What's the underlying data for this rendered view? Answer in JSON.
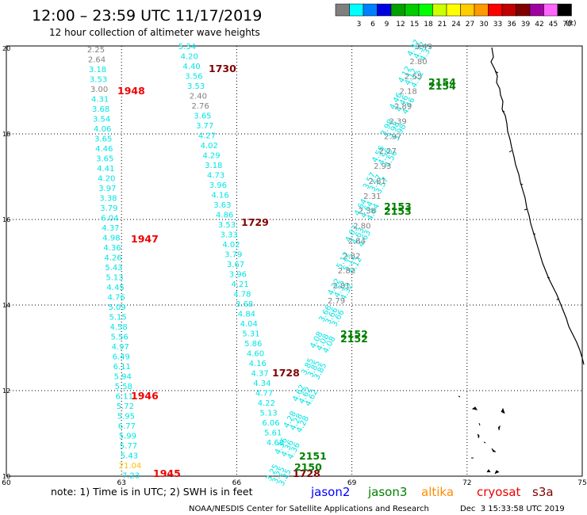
{
  "header": {
    "title": "12:00 – 23:59 UTC 11/17/2019",
    "subtitle": "12 hour collection of altimeter wave heights"
  },
  "legend": {
    "unit": "(ft)",
    "bins": [
      {
        "label": "",
        "color": "#7f7f7f"
      },
      {
        "label": "3",
        "color": "#00ffff"
      },
      {
        "label": "6",
        "color": "#0080ff"
      },
      {
        "label": "9",
        "color": "#0000e0"
      },
      {
        "label": "12",
        "color": "#00a000"
      },
      {
        "label": "15",
        "color": "#00cc00"
      },
      {
        "label": "18",
        "color": "#00ff00"
      },
      {
        "label": "21",
        "color": "#ccff00"
      },
      {
        "label": "24",
        "color": "#ffff00"
      },
      {
        "label": "27",
        "color": "#ffcc00"
      },
      {
        "label": "30",
        "color": "#ff9900"
      },
      {
        "label": "33",
        "color": "#ff0000"
      },
      {
        "label": "36",
        "color": "#c00000"
      },
      {
        "label": "39",
        "color": "#800000"
      },
      {
        "label": "42",
        "color": "#a000a0"
      },
      {
        "label": "45",
        "color": "#ff66ff"
      },
      {
        "label": "70",
        "color": "#000000"
      }
    ]
  },
  "axes": {
    "lon_ticks": [
      "60",
      "63",
      "66",
      "69",
      "72",
      "75"
    ],
    "lat_ticks": [
      "10",
      "12",
      "14",
      "16",
      "18",
      "20"
    ]
  },
  "colors": {
    "gray": "#808080",
    "cyan": "#00e5e5",
    "gold": "#ffc000",
    "green": "#008000",
    "red": "#ee0000",
    "maroon": "#800000",
    "blue": "#0000ff",
    "orange": "#ff8c00"
  },
  "tracks": [
    {
      "name": "track-1948",
      "time_label": "1948",
      "time_color": "red",
      "values": [
        {
          "v": "2.25",
          "c": "gray"
        },
        {
          "v": "2.64",
          "c": "gray"
        },
        {
          "v": "3.18",
          "c": "cyan"
        },
        {
          "v": "3.53",
          "c": "cyan"
        },
        {
          "v": "3.00",
          "c": "gray"
        },
        {
          "v": "4.31",
          "c": "cyan"
        },
        {
          "v": "3.68",
          "c": "cyan"
        },
        {
          "v": "3.54",
          "c": "cyan"
        },
        {
          "v": "4.06",
          "c": "cyan"
        },
        {
          "v": "3.65",
          "c": "cyan"
        },
        {
          "v": "4.46",
          "c": "cyan"
        },
        {
          "v": "3.65",
          "c": "cyan"
        },
        {
          "v": "4.41",
          "c": "cyan"
        },
        {
          "v": "4.20",
          "c": "cyan"
        },
        {
          "v": "3.97",
          "c": "cyan"
        },
        {
          "v": "3.38",
          "c": "cyan"
        },
        {
          "v": "3.79",
          "c": "cyan"
        },
        {
          "v": "6.04",
          "c": "cyan"
        },
        {
          "v": "4.37",
          "c": "cyan"
        },
        {
          "v": "4.98",
          "c": "cyan"
        },
        {
          "v": "4.36",
          "c": "cyan"
        },
        {
          "v": "4.26",
          "c": "cyan"
        },
        {
          "v": "5.43",
          "c": "cyan"
        },
        {
          "v": "5.13",
          "c": "cyan"
        },
        {
          "v": "4.45",
          "c": "cyan"
        },
        {
          "v": "4.76",
          "c": "cyan"
        },
        {
          "v": "5.09",
          "c": "cyan"
        },
        {
          "v": "5.15",
          "c": "cyan"
        },
        {
          "v": "4.58",
          "c": "cyan"
        },
        {
          "v": "5.56",
          "c": "cyan"
        },
        {
          "v": "4.97",
          "c": "cyan"
        },
        {
          "v": "6.49",
          "c": "cyan"
        },
        {
          "v": "6.11",
          "c": "cyan"
        },
        {
          "v": "5.94",
          "c": "cyan"
        },
        {
          "v": "5.58",
          "c": "cyan"
        },
        {
          "v": "6.11",
          "c": "cyan"
        },
        {
          "v": "5.72",
          "c": "cyan"
        },
        {
          "v": "5.95",
          "c": "cyan"
        },
        {
          "v": "6.77",
          "c": "cyan"
        },
        {
          "v": "5.99",
          "c": "cyan"
        },
        {
          "v": "5.77",
          "c": "cyan"
        },
        {
          "v": "5.43",
          "c": "cyan"
        },
        {
          "v": "21.04",
          "c": "gold"
        },
        {
          "v": "7.23",
          "c": "cyan"
        }
      ]
    },
    {
      "name": "track-1730",
      "time_label": "1730",
      "time_color": "maroon",
      "values": [
        {
          "v": "5.34",
          "c": "cyan"
        },
        {
          "v": "4.20",
          "c": "cyan"
        },
        {
          "v": "4.40",
          "c": "cyan"
        },
        {
          "v": "3.56",
          "c": "cyan"
        },
        {
          "v": "3.53",
          "c": "cyan"
        },
        {
          "v": "2.40",
          "c": "gray"
        },
        {
          "v": "2.76",
          "c": "gray"
        },
        {
          "v": "3.65",
          "c": "cyan"
        },
        {
          "v": "3.77",
          "c": "cyan"
        },
        {
          "v": "4.27",
          "c": "cyan"
        },
        {
          "v": "4.02",
          "c": "cyan"
        },
        {
          "v": "4.29",
          "c": "cyan"
        },
        {
          "v": "3.18",
          "c": "cyan"
        },
        {
          "v": "4.73",
          "c": "cyan"
        },
        {
          "v": "3.96",
          "c": "cyan"
        },
        {
          "v": "4.16",
          "c": "cyan"
        },
        {
          "v": "3.63",
          "c": "cyan"
        },
        {
          "v": "4.86",
          "c": "cyan"
        },
        {
          "v": "3.53",
          "c": "cyan"
        },
        {
          "v": "3.33",
          "c": "cyan"
        },
        {
          "v": "4.02",
          "c": "cyan"
        },
        {
          "v": "3.79",
          "c": "cyan"
        },
        {
          "v": "3.67",
          "c": "cyan"
        },
        {
          "v": "3.96",
          "c": "cyan"
        },
        {
          "v": "4.21",
          "c": "cyan"
        },
        {
          "v": "4.78",
          "c": "cyan"
        },
        {
          "v": "3.68",
          "c": "cyan"
        },
        {
          "v": "4.84",
          "c": "cyan"
        },
        {
          "v": "4.04",
          "c": "cyan"
        },
        {
          "v": "5.31",
          "c": "cyan"
        },
        {
          "v": "5.86",
          "c": "cyan"
        },
        {
          "v": "4.60",
          "c": "cyan"
        },
        {
          "v": "4.16",
          "c": "cyan"
        },
        {
          "v": "4.37",
          "c": "cyan"
        },
        {
          "v": "4.34",
          "c": "cyan"
        },
        {
          "v": "4.77",
          "c": "cyan"
        },
        {
          "v": "4.22",
          "c": "cyan"
        },
        {
          "v": "5.13",
          "c": "cyan"
        },
        {
          "v": "6.06",
          "c": "cyan"
        },
        {
          "v": "5.61",
          "c": "cyan"
        },
        {
          "v": "4.68",
          "c": "cyan"
        }
      ]
    }
  ],
  "time_labels": [
    {
      "t": "1948",
      "c": "red"
    },
    {
      "t": "1730",
      "c": "maroon"
    },
    {
      "t": "1947",
      "c": "red"
    },
    {
      "t": "1729",
      "c": "maroon"
    },
    {
      "t": "1728",
      "c": "maroon"
    },
    {
      "t": "1946",
      "c": "red"
    },
    {
      "t": "1945",
      "c": "red"
    },
    {
      "t": "1728",
      "c": "maroon"
    },
    {
      "t": "2154",
      "c": "green"
    },
    {
      "t": "2154",
      "c": "green"
    },
    {
      "t": "2153",
      "c": "green"
    },
    {
      "t": "2153",
      "c": "green"
    },
    {
      "t": "2152",
      "c": "green"
    },
    {
      "t": "2152",
      "c": "green"
    },
    {
      "t": "2151",
      "c": "green"
    },
    {
      "t": "2150",
      "c": "green"
    }
  ],
  "diagonal_track": {
    "gray_values": [
      "3.49",
      "2.80",
      "2.55",
      "2.18",
      "2.89",
      "2.39",
      "2.97",
      "2.27",
      "2.93",
      "2.81",
      "2.31",
      "2.38",
      "2.80",
      "2.84",
      "2.82",
      "2.82",
      "2.81",
      "2.79"
    ],
    "cyan_values": [
      "4.37",
      "4.12",
      "4.46",
      "3.98",
      "4.56",
      "3.57",
      "4.64",
      "4.63",
      "5.12",
      "4.32",
      "3.66",
      "4.08",
      "3.85",
      "4.62",
      "4.28",
      "4.36",
      "3.25"
    ]
  },
  "footer": {
    "note": "note: 1) Time is in UTC; 2) SWH is in feet",
    "satellites": [
      {
        "name": "jason2",
        "color": "blue"
      },
      {
        "name": "jason3",
        "color": "green"
      },
      {
        "name": "altika",
        "color": "orange"
      },
      {
        "name": "cryosat",
        "color": "red"
      },
      {
        "name": "s3a",
        "color": "maroon"
      }
    ],
    "credit": "NOAA/NESDIS Center for Satellite Applications and Research",
    "timestamp": "Dec  3 15:33:58 UTC 2019"
  }
}
